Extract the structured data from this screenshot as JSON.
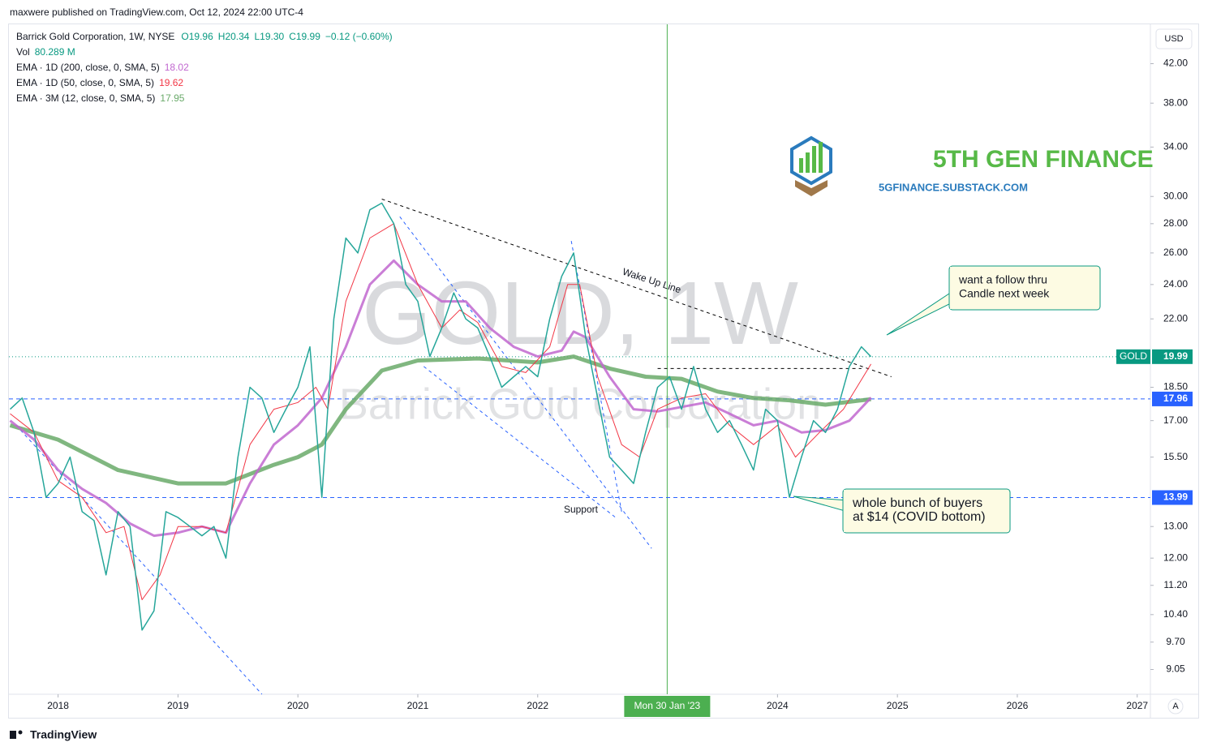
{
  "header": {
    "publisher": "maxwere published on TradingView.com, Oct 12, 2024 22:00 UTC-4",
    "brand": "TradingView",
    "currency": "USD",
    "auto": "A"
  },
  "chart_data": {
    "type": "line",
    "log_scale": true,
    "symbol": "Barrick Gold Corporation, 1W, NYSE",
    "ohlc": [
      "O19.96",
      "H20.34",
      "L19.30",
      "C19.99",
      "−0.12 (−0.60%)"
    ],
    "volume_label": "Vol",
    "volume_value": "80.289 M",
    "watermark": "GOLD, 1W",
    "watermark_sub": "Barrick Gold Corporation",
    "logo_title": "5TH GEN FINANCE",
    "logo_url": "5GFINANCE.SUBSTACK.COM",
    "crosshair": {
      "x": 2023.08,
      "label": "Mon 30 Jan '23"
    },
    "xlim": [
      2017.59,
      2027.11
    ],
    "ylim": [
      8.5,
      46.4
    ],
    "xticks": [
      2018,
      2019,
      2020,
      2021,
      2022,
      2024,
      2025,
      2026,
      2027
    ],
    "yticks": [
      {
        "value": 42,
        "label": "42.00"
      },
      {
        "value": 38,
        "label": "38.00"
      },
      {
        "value": 34,
        "label": "34.00"
      },
      {
        "value": 30,
        "label": "30.00"
      },
      {
        "value": 28,
        "label": "28.00"
      },
      {
        "value": 26,
        "label": "26.00"
      },
      {
        "value": 24,
        "label": "24.00"
      },
      {
        "value": 22,
        "label": "22.00"
      },
      {
        "value": 18.5,
        "label": "18.50"
      },
      {
        "value": 17,
        "label": "17.00"
      },
      {
        "value": 15.5,
        "label": "15.50"
      },
      {
        "value": 13,
        "label": "13.00"
      },
      {
        "value": 12,
        "label": "12.00"
      },
      {
        "value": 11.2,
        "label": "11.20"
      },
      {
        "value": 10.4,
        "label": "10.40"
      },
      {
        "value": 9.7,
        "label": "9.70"
      },
      {
        "value": 9.05,
        "label": "9.05"
      }
    ],
    "series": [
      {
        "name": "GOLD",
        "color": "#26a69a",
        "width": 1.5,
        "x": [
          2017.6,
          2017.7,
          2017.8,
          2017.9,
          2018.0,
          2018.1,
          2018.2,
          2018.3,
          2018.4,
          2018.5,
          2018.6,
          2018.7,
          2018.8,
          2018.9,
          2019.0,
          2019.1,
          2019.2,
          2019.3,
          2019.4,
          2019.5,
          2019.6,
          2019.7,
          2019.8,
          2019.9,
          2020.0,
          2020.1,
          2020.2,
          2020.3,
          2020.4,
          2020.5,
          2020.6,
          2020.7,
          2020.8,
          2020.9,
          2021.0,
          2021.1,
          2021.2,
          2021.3,
          2021.4,
          2021.5,
          2021.6,
          2021.7,
          2021.8,
          2021.9,
          2022.0,
          2022.1,
          2022.2,
          2022.3,
          2022.4,
          2022.5,
          2022.6,
          2022.7,
          2022.8,
          2022.9,
          2023.0,
          2023.1,
          2023.2,
          2023.3,
          2023.4,
          2023.5,
          2023.6,
          2023.7,
          2023.8,
          2023.9,
          2024.0,
          2024.1,
          2024.2,
          2024.3,
          2024.4,
          2024.5,
          2024.6,
          2024.7,
          2024.78
        ],
        "values": [
          17.5,
          18,
          16.5,
          14,
          14.5,
          15.5,
          13.5,
          13.2,
          11.5,
          13.5,
          13,
          10,
          10.5,
          13.5,
          13.3,
          13,
          12.7,
          13,
          12,
          15.5,
          18.5,
          18,
          16.5,
          17.5,
          18.5,
          20.5,
          14,
          22,
          27,
          26,
          29,
          29.5,
          28,
          24,
          23,
          20,
          21.5,
          23.5,
          22,
          21.5,
          20,
          18.5,
          19,
          19.5,
          19,
          22,
          24.5,
          26,
          21,
          18,
          15.5,
          15,
          14.5,
          16.5,
          18.5,
          19,
          17.5,
          19.5,
          17.5,
          16.5,
          17,
          16,
          15,
          17.5,
          17,
          14,
          15.5,
          17,
          16.5,
          17.5,
          19.5,
          20.5,
          19.99
        ]
      },
      {
        "name": "EMA · 1D (200, close, 0, SMA, 5)",
        "last": 18.02,
        "color": "#c167cf",
        "width": 3,
        "x": [
          2017.6,
          2017.8,
          2018.0,
          2018.2,
          2018.4,
          2018.6,
          2018.8,
          2019.0,
          2019.2,
          2019.4,
          2019.6,
          2019.8,
          2020.0,
          2020.2,
          2020.4,
          2020.6,
          2020.8,
          2021.0,
          2021.2,
          2021.4,
          2021.6,
          2021.8,
          2022.0,
          2022.2,
          2022.3,
          2022.4,
          2022.6,
          2022.8,
          2023.0,
          2023.2,
          2023.4,
          2023.6,
          2023.8,
          2024.0,
          2024.2,
          2024.4,
          2024.6,
          2024.78
        ],
        "values": [
          17,
          16.2,
          15,
          14.3,
          13.8,
          13.1,
          12.7,
          12.8,
          13,
          12.8,
          14.5,
          16,
          16.8,
          18,
          20.5,
          24,
          25.5,
          24,
          23,
          23,
          21.5,
          20.5,
          20,
          20.3,
          21.3,
          21,
          19,
          17.5,
          17.4,
          17.6,
          17.8,
          17.3,
          16.8,
          17,
          16.5,
          16.6,
          17,
          18.02
        ]
      },
      {
        "name": "EMA · 1D (50, close, 0, SMA, 5)",
        "last": 19.62,
        "color": "#f23645",
        "width": 1,
        "x": [
          2017.6,
          2017.8,
          2018.0,
          2018.2,
          2018.4,
          2018.55,
          2018.7,
          2018.85,
          2019.0,
          2019.2,
          2019.4,
          2019.6,
          2019.8,
          2020.0,
          2020.15,
          2020.25,
          2020.4,
          2020.6,
          2020.8,
          2021.0,
          2021.2,
          2021.35,
          2021.5,
          2021.7,
          2021.9,
          2022.1,
          2022.25,
          2022.35,
          2022.5,
          2022.7,
          2022.85,
          2023.0,
          2023.2,
          2023.4,
          2023.6,
          2023.8,
          2024.0,
          2024.15,
          2024.35,
          2024.55,
          2024.78
        ],
        "values": [
          17.3,
          16.5,
          14.6,
          14,
          12.8,
          13,
          10.8,
          11.5,
          13,
          13,
          12.8,
          16,
          17.5,
          17.8,
          18.5,
          17.5,
          23,
          27,
          28,
          24,
          21.5,
          22.5,
          21.8,
          19.5,
          19.2,
          20.5,
          24,
          24,
          19,
          16,
          15.5,
          17.5,
          18,
          18.2,
          16.8,
          16,
          16.8,
          15.5,
          16.5,
          17.5,
          19.62
        ]
      },
      {
        "name": "EMA · 3M (12, close, 0, SMA, 5)",
        "last": 17.95,
        "color": "#6aaa6a",
        "width": 5,
        "x": [
          2017.6,
          2018.0,
          2018.5,
          2019.0,
          2019.4,
          2019.8,
          2020.0,
          2020.2,
          2020.4,
          2020.7,
          2021.0,
          2021.5,
          2022.0,
          2022.3,
          2022.6,
          2022.9,
          2023.2,
          2023.5,
          2023.8,
          2024.1,
          2024.4,
          2024.78
        ],
        "values": [
          16.8,
          16.2,
          15,
          14.5,
          14.5,
          15.2,
          15.5,
          16,
          17.5,
          19.3,
          19.8,
          19.9,
          19.7,
          20,
          19.4,
          19,
          18.9,
          18.3,
          18,
          17.9,
          17.7,
          17.95
        ]
      }
    ],
    "price_lines": [
      {
        "value": 19.99,
        "label": "19.99",
        "tag": "GOLD",
        "color": "#089981",
        "dash": "1 3"
      },
      {
        "value": 17.96,
        "label": "17.96",
        "color": "#2962ff",
        "dash": "5 4"
      },
      {
        "value": 13.99,
        "label": "13.99",
        "color": "#2962ff",
        "dash": "5 4"
      }
    ],
    "trendlines": [
      {
        "x": [
          2020.7,
          2024.95
        ],
        "y": [
          29.8,
          19.0
        ],
        "color": "#000000"
      },
      {
        "x": [
          2023.0,
          2024.7
        ],
        "y": [
          19.4,
          19.4
        ],
        "color": "#000000"
      },
      {
        "x": [
          2017.65,
          2019.7
        ],
        "y": [
          16.8,
          8.5
        ],
        "color": "#2962ff"
      },
      {
        "x": [
          2020.85,
          2022.95
        ],
        "y": [
          28.5,
          12.3
        ],
        "color": "#2962ff"
      },
      {
        "x": [
          2021.05,
          2022.65
        ],
        "y": [
          19.5,
          13.3
        ],
        "color": "#2962ff"
      },
      {
        "x": [
          2022.28,
          2022.7
        ],
        "y": [
          26.8,
          13.5
        ],
        "color": "#2962ff"
      }
    ],
    "annotations": [
      {
        "text": "Wake Up Line",
        "x": 2022.95,
        "y": 24.2
      },
      {
        "text": "Support",
        "x": 2022.36,
        "y": 13.55
      }
    ],
    "callouts": [
      {
        "lines": [
          "want a follow thru",
          "Candle next week"
        ],
        "x": 2024.25,
        "y": 20.6
      },
      {
        "lines": [
          "whole bunch of buyers",
          "at $14 (COVID bottom)"
        ],
        "x": 2024.1,
        "y": 13.8
      }
    ]
  }
}
